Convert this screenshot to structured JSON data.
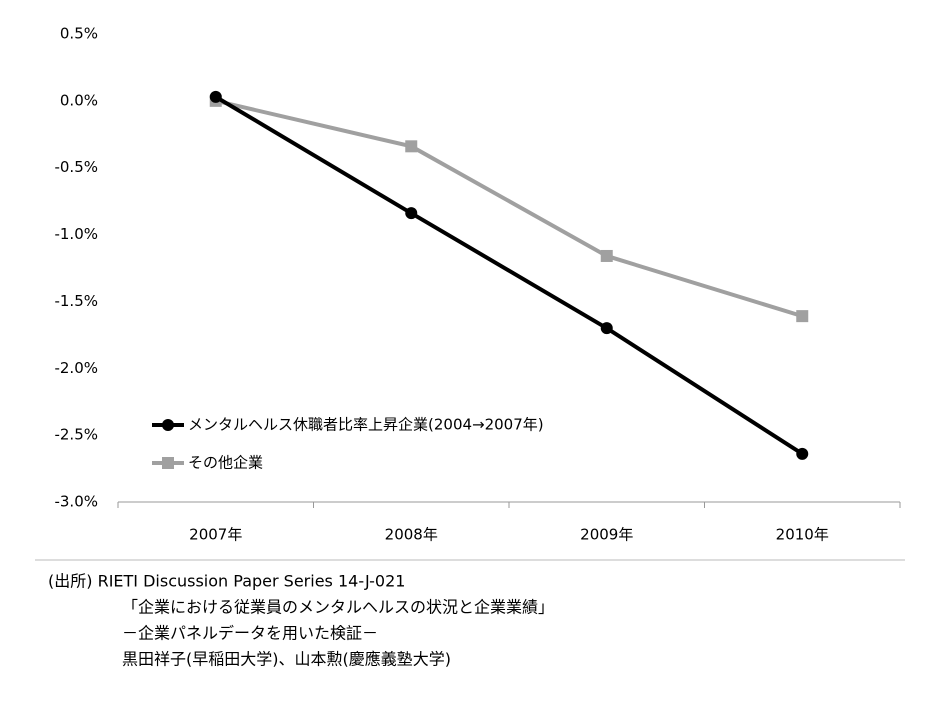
{
  "chart_data": {
    "type": "line",
    "categories": [
      "2007年",
      "2008年",
      "2009年",
      "2010年"
    ],
    "series": [
      {
        "name": "メンタルヘルス休職者比率上昇企業(2004→2007年)",
        "color": "#000000",
        "marker": "circle",
        "values": [
          0.03,
          -0.84,
          -1.7,
          -2.64
        ]
      },
      {
        "name": "その他企業",
        "color": "#a0a0a0",
        "marker": "square",
        "values": [
          0.0,
          -0.34,
          -1.16,
          -1.61
        ]
      }
    ],
    "ylim": [
      -3.0,
      0.5
    ],
    "yticks": [
      {
        "value": 0.5,
        "label": "0.5%"
      },
      {
        "value": 0.0,
        "label": "0.0%"
      },
      {
        "value": -0.5,
        "label": "-0.5%"
      },
      {
        "value": -1.0,
        "label": "-1.0%"
      },
      {
        "value": -1.5,
        "label": "-1.5%"
      },
      {
        "value": -2.0,
        "label": "-2.0%"
      },
      {
        "value": -2.5,
        "label": "-2.5%"
      },
      {
        "value": -3.0,
        "label": "-3.0%"
      }
    ],
    "grid": false,
    "legend": "lower-left"
  },
  "source": {
    "lines": [
      "(出所) RIETI Discussion Paper Series 14-J-021",
      "「企業における従業員のメンタルヘルスの状況と企業業績」",
      "－企業パネルデータを用いた検証－",
      "黒田祥子(早稲田大学)、山本勲(慶應義塾大学)"
    ]
  }
}
